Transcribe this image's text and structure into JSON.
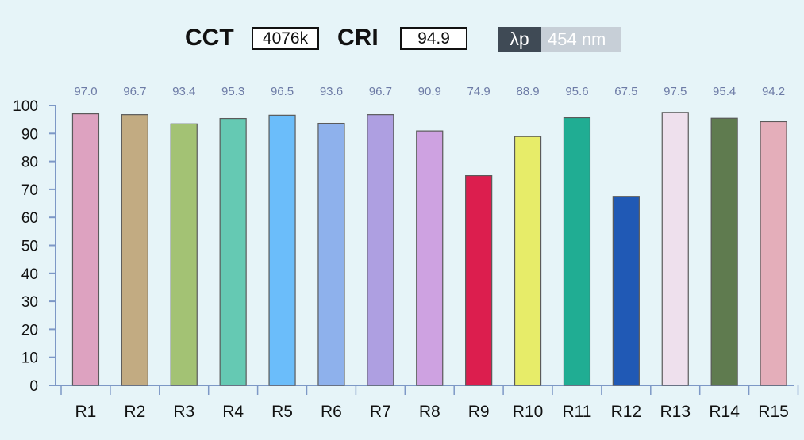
{
  "header": {
    "cct_label": "CCT",
    "cct_value": "4076k",
    "cri_label": "CRI",
    "cri_value": "94.9",
    "peak_label": "λp",
    "peak_value": "454 nm"
  },
  "chart_data": {
    "type": "bar",
    "categories": [
      "R1",
      "R2",
      "R3",
      "R4",
      "R5",
      "R6",
      "R7",
      "R8",
      "R9",
      "R10",
      "R11",
      "R12",
      "R13",
      "R14",
      "R15"
    ],
    "values": [
      97.0,
      96.7,
      93.4,
      95.3,
      96.5,
      93.6,
      96.7,
      90.9,
      74.9,
      88.9,
      95.6,
      67.5,
      97.5,
      95.4,
      94.2
    ],
    "value_labels": [
      "97.0",
      "96.7",
      "93.4",
      "95.3",
      "96.5",
      "93.6",
      "96.7",
      "90.9",
      "74.9",
      "88.9",
      "95.6",
      "67.5",
      "97.5",
      "95.4",
      "94.2"
    ],
    "colors": [
      "#dda2c0",
      "#c2ab82",
      "#a3c274",
      "#65c9b3",
      "#6bbdfa",
      "#8eb1ec",
      "#ae9fe1",
      "#cea2e1",
      "#dc1e4e",
      "#e7ec69",
      "#20ad93",
      "#2059b5",
      "#eee0ed",
      "#5f7b4f",
      "#e4aeba"
    ],
    "yticks": [
      "0",
      "10",
      "20",
      "30",
      "40",
      "50",
      "60",
      "70",
      "80",
      "90",
      "100"
    ],
    "ylim": [
      0,
      100
    ],
    "title": "",
    "xlabel": "",
    "ylabel": "",
    "grid": false,
    "axis_color": "#7d98c6",
    "value_label_color": "#6d7ba6"
  }
}
